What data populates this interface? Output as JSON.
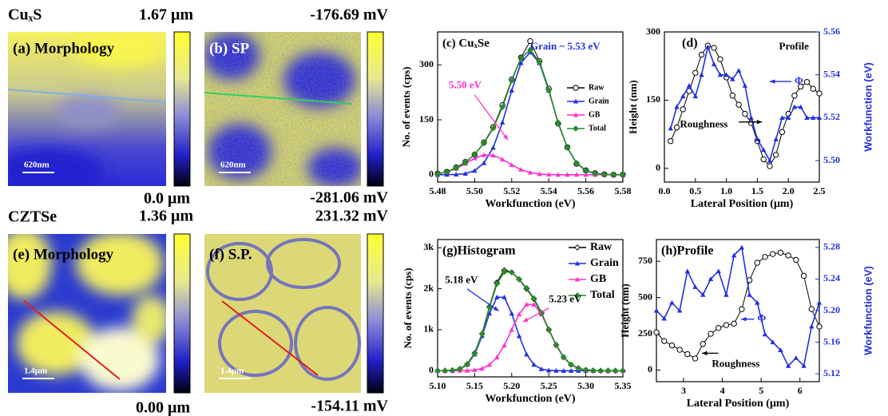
{
  "maps": [
    {
      "title": "CuₓS",
      "panels": [
        {
          "label": "(a) Morphology",
          "scale": "620nm",
          "max": "1.67 μm",
          "min": "0.0 μm"
        },
        {
          "label": "(b) SP",
          "scale": "620nm",
          "max": "-176.69 mV",
          "min": "-281.06 mV"
        }
      ]
    },
    {
      "title": "CZTSe",
      "panels": [
        {
          "label": "(e) Morphology",
          "scale": "1.4μm",
          "max": "1.36 μm",
          "min": "0.00 μm"
        },
        {
          "label": "(f) S.P.",
          "scale": "1.4μm",
          "max": "231.32 mV",
          "min": "-154.11 mV"
        }
      ]
    }
  ],
  "chart_data": [
    {
      "type": "line",
      "title": "(c) CuₓSe",
      "xlabel": "Workfunction (eV)",
      "ylabel": "No. of events (cps)",
      "x": [
        5.48,
        5.485,
        5.49,
        5.495,
        5.5,
        5.505,
        5.51,
        5.515,
        5.52,
        5.525,
        5.53,
        5.535,
        5.54,
        5.545,
        5.55,
        5.555,
        5.56,
        5.565,
        5.57,
        5.575,
        5.58
      ],
      "xlim": [
        5.48,
        5.58
      ],
      "xticks": [
        5.48,
        {
          "value": 5.5,
          "label": "5.50"
        },
        5.52,
        5.54,
        5.56,
        5.58
      ],
      "ylim": [
        -20,
        390
      ],
      "yticks": [
        0,
        150,
        300
      ],
      "legend": "right",
      "series": [
        {
          "name": "Raw",
          "color": "#000000",
          "marker": "circle-open",
          "values": [
            3,
            8,
            20,
            35,
            55,
            88,
            130,
            190,
            260,
            320,
            365,
            310,
            235,
            140,
            75,
            30,
            12,
            4,
            1,
            0,
            0
          ]
        },
        {
          "name": "Grain",
          "color": "#1f2fe0",
          "marker": "triangle",
          "values": [
            0,
            0.2,
            0.8,
            3,
            11,
            32,
            74,
            143,
            230,
            305,
            335,
            305,
            230,
            143,
            74,
            32,
            11,
            3,
            0.8,
            0.2,
            0
          ]
        },
        {
          "name": "GB",
          "color": "#ff30d0",
          "marker": "triangle",
          "values": [
            2.7,
            7.4,
            17,
            30,
            45,
            54,
            53,
            42,
            27,
            14,
            6,
            2,
            0.6,
            0,
            0,
            0,
            0,
            0,
            0,
            0,
            0
          ]
        },
        {
          "name": "Total",
          "color": "#2a8a2a",
          "marker": "diamond",
          "values": [
            2.7,
            7.6,
            18,
            33,
            56,
            86,
            127,
            185,
            257,
            319,
            341,
            307,
            231,
            143,
            74,
            32,
            11,
            3,
            0.8,
            0.2,
            0
          ]
        }
      ],
      "annotations": [
        "Grain ~ 5.53 eV",
        "5.50 eV"
      ]
    },
    {
      "type": "line",
      "title": "(d)",
      "xlabel": "Lateral Position (μm)",
      "ylabel": "Height (nm)",
      "y2label": "Workfunction (eV)",
      "x": [
        0.1,
        0.2,
        0.3,
        0.4,
        0.5,
        0.6,
        0.7,
        0.8,
        0.9,
        1.0,
        1.1,
        1.2,
        1.3,
        1.4,
        1.5,
        1.6,
        1.7,
        1.8,
        1.9,
        2.0,
        2.1,
        2.2,
        2.3,
        2.4,
        2.5
      ],
      "xlim": [
        0,
        2.5
      ],
      "xticks": [
        {
          "value": 0,
          "label": "0.0"
        },
        0.5,
        {
          "value": 1,
          "label": "1.0"
        },
        1.5,
        {
          "value": 2,
          "label": "2.0"
        },
        2.5
      ],
      "ylim": [
        -30,
        300
      ],
      "yticks": [
        0,
        150,
        300
      ],
      "y2lim": [
        5.49,
        5.56
      ],
      "y2ticks": [
        {
          "value": 5.5,
          "label": "5.50"
        },
        5.52,
        5.54,
        5.56
      ],
      "series": [
        {
          "color": "#000000",
          "marker": "circle-open",
          "values": [
            60,
            90,
            130,
            170,
            210,
            250,
            270,
            265,
            240,
            200,
            160,
            140,
            120,
            100,
            60,
            20,
            5,
            30,
            80,
            120,
            160,
            180,
            190,
            175,
            165
          ]
        },
        {
          "color": "#1f2fe0",
          "marker": "triangle",
          "axis": "y2",
          "values": [
            5.515,
            5.525,
            5.53,
            5.535,
            5.53,
            5.54,
            5.553,
            5.545,
            5.54,
            5.54,
            5.538,
            5.542,
            5.535,
            5.52,
            5.51,
            5.505,
            5.5,
            5.51,
            5.52,
            5.52,
            5.525,
            5.525,
            5.52,
            5.52,
            5.52
          ]
        }
      ],
      "annotations": [
        "Profile",
        "Φ",
        "Roughness"
      ]
    },
    {
      "type": "line",
      "title": "(g)Histogram",
      "xlabel": "Workfunction (eV)",
      "ylabel": "No. of events (cps)",
      "x": [
        5.1,
        5.11,
        5.12,
        5.13,
        5.14,
        5.15,
        5.16,
        5.17,
        5.18,
        5.19,
        5.2,
        5.21,
        5.22,
        5.23,
        5.24,
        5.25,
        5.26,
        5.27,
        5.28,
        5.29,
        5.3,
        5.31,
        5.32,
        5.33,
        5.34,
        5.35
      ],
      "xlim": [
        5.1,
        5.35
      ],
      "xticks": [
        {
          "value": 5.1,
          "label": "5.10"
        },
        5.15,
        {
          "value": 5.2,
          "label": "5.20"
        },
        5.25,
        {
          "value": 5.3,
          "label": "5.30"
        },
        5.35
      ],
      "ylim": [
        -150,
        3200
      ],
      "yticks": [
        0,
        {
          "value": 1000,
          "label": "1k"
        },
        {
          "value": 2000,
          "label": "2k"
        },
        {
          "value": 3000,
          "label": "3k"
        }
      ],
      "legend": "top-right",
      "series": [
        {
          "name": "Raw",
          "color": "#000000",
          "marker": "diamond-open",
          "values": [
            0,
            2,
            10,
            45,
            160,
            430,
            900,
            1560,
            2150,
            2450,
            2400,
            2230,
            2000,
            1750,
            1400,
            1000,
            630,
            330,
            150,
            60,
            20,
            5,
            1,
            0,
            0,
            0
          ]
        },
        {
          "name": "Grain",
          "color": "#1f2fe0",
          "marker": "triangle",
          "values": [
            0.2,
            1.6,
            9,
            42,
            147,
            400,
            848,
            1398,
            1793,
            1793,
            1398,
            848,
            400,
            147,
            42,
            9,
            1.6,
            0.2,
            0,
            0,
            0,
            0,
            0,
            0,
            0,
            0
          ]
        },
        {
          "name": "GB",
          "color": "#ff30d0",
          "marker": "triangle",
          "values": [
            0,
            0,
            0.2,
            1.2,
            5,
            18,
            56,
            146,
            327,
            619,
            1001,
            1378,
            1617,
            1617,
            1378,
            1001,
            619,
            327,
            146,
            56,
            18,
            5,
            1.2,
            0.2,
            0,
            0
          ]
        },
        {
          "name": "Total",
          "color": "#2a8a2a",
          "marker": "diamond",
          "values": [
            0.2,
            1.6,
            9,
            43,
            152,
            418,
            904,
            1544,
            2120,
            2412,
            2399,
            2226,
            2017,
            1764,
            1420,
            1010,
            621,
            327,
            146,
            56,
            18,
            5,
            1.2,
            0.2,
            0,
            0
          ]
        }
      ],
      "annotations": [
        "5.18 eV",
        "5.23 eV"
      ]
    },
    {
      "type": "line",
      "title": "(h)Profile",
      "xlabel": "Lateral Position (μm)",
      "ylabel": "Height (nm)",
      "y2label": "Workfunction (eV)",
      "x": [
        2.3,
        2.5,
        2.7,
        2.9,
        3.1,
        3.3,
        3.5,
        3.7,
        3.9,
        4.1,
        4.3,
        4.5,
        4.7,
        4.9,
        5.1,
        5.3,
        5.5,
        5.7,
        5.9,
        6.1,
        6.3,
        6.5
      ],
      "xlim": [
        2.3,
        6.5
      ],
      "xticks": [
        3,
        4,
        5,
        6
      ],
      "ylim": [
        -80,
        900
      ],
      "yticks": [
        0,
        250,
        500,
        750
      ],
      "y2lim": [
        5.11,
        5.29
      ],
      "y2ticks": [
        5.12,
        5.16,
        {
          "value": 5.2,
          "label": "5.20"
        },
        5.24,
        5.28
      ],
      "series": [
        {
          "color": "#000000",
          "marker": "circle-open",
          "values": [
            260,
            200,
            170,
            140,
            110,
            80,
            180,
            250,
            290,
            310,
            320,
            420,
            620,
            740,
            780,
            800,
            810,
            790,
            760,
            650,
            420,
            300
          ]
        },
        {
          "color": "#1f2fe0",
          "marker": "triangle",
          "axis": "y2",
          "values": [
            5.2,
            5.19,
            5.21,
            5.2,
            5.25,
            5.23,
            5.22,
            5.24,
            5.25,
            5.22,
            5.27,
            5.28,
            5.22,
            5.21,
            5.17,
            5.16,
            5.15,
            5.13,
            5.14,
            5.13,
            5.18,
            5.21
          ]
        }
      ],
      "annotations": [
        "Φ",
        "Roughness"
      ]
    }
  ]
}
